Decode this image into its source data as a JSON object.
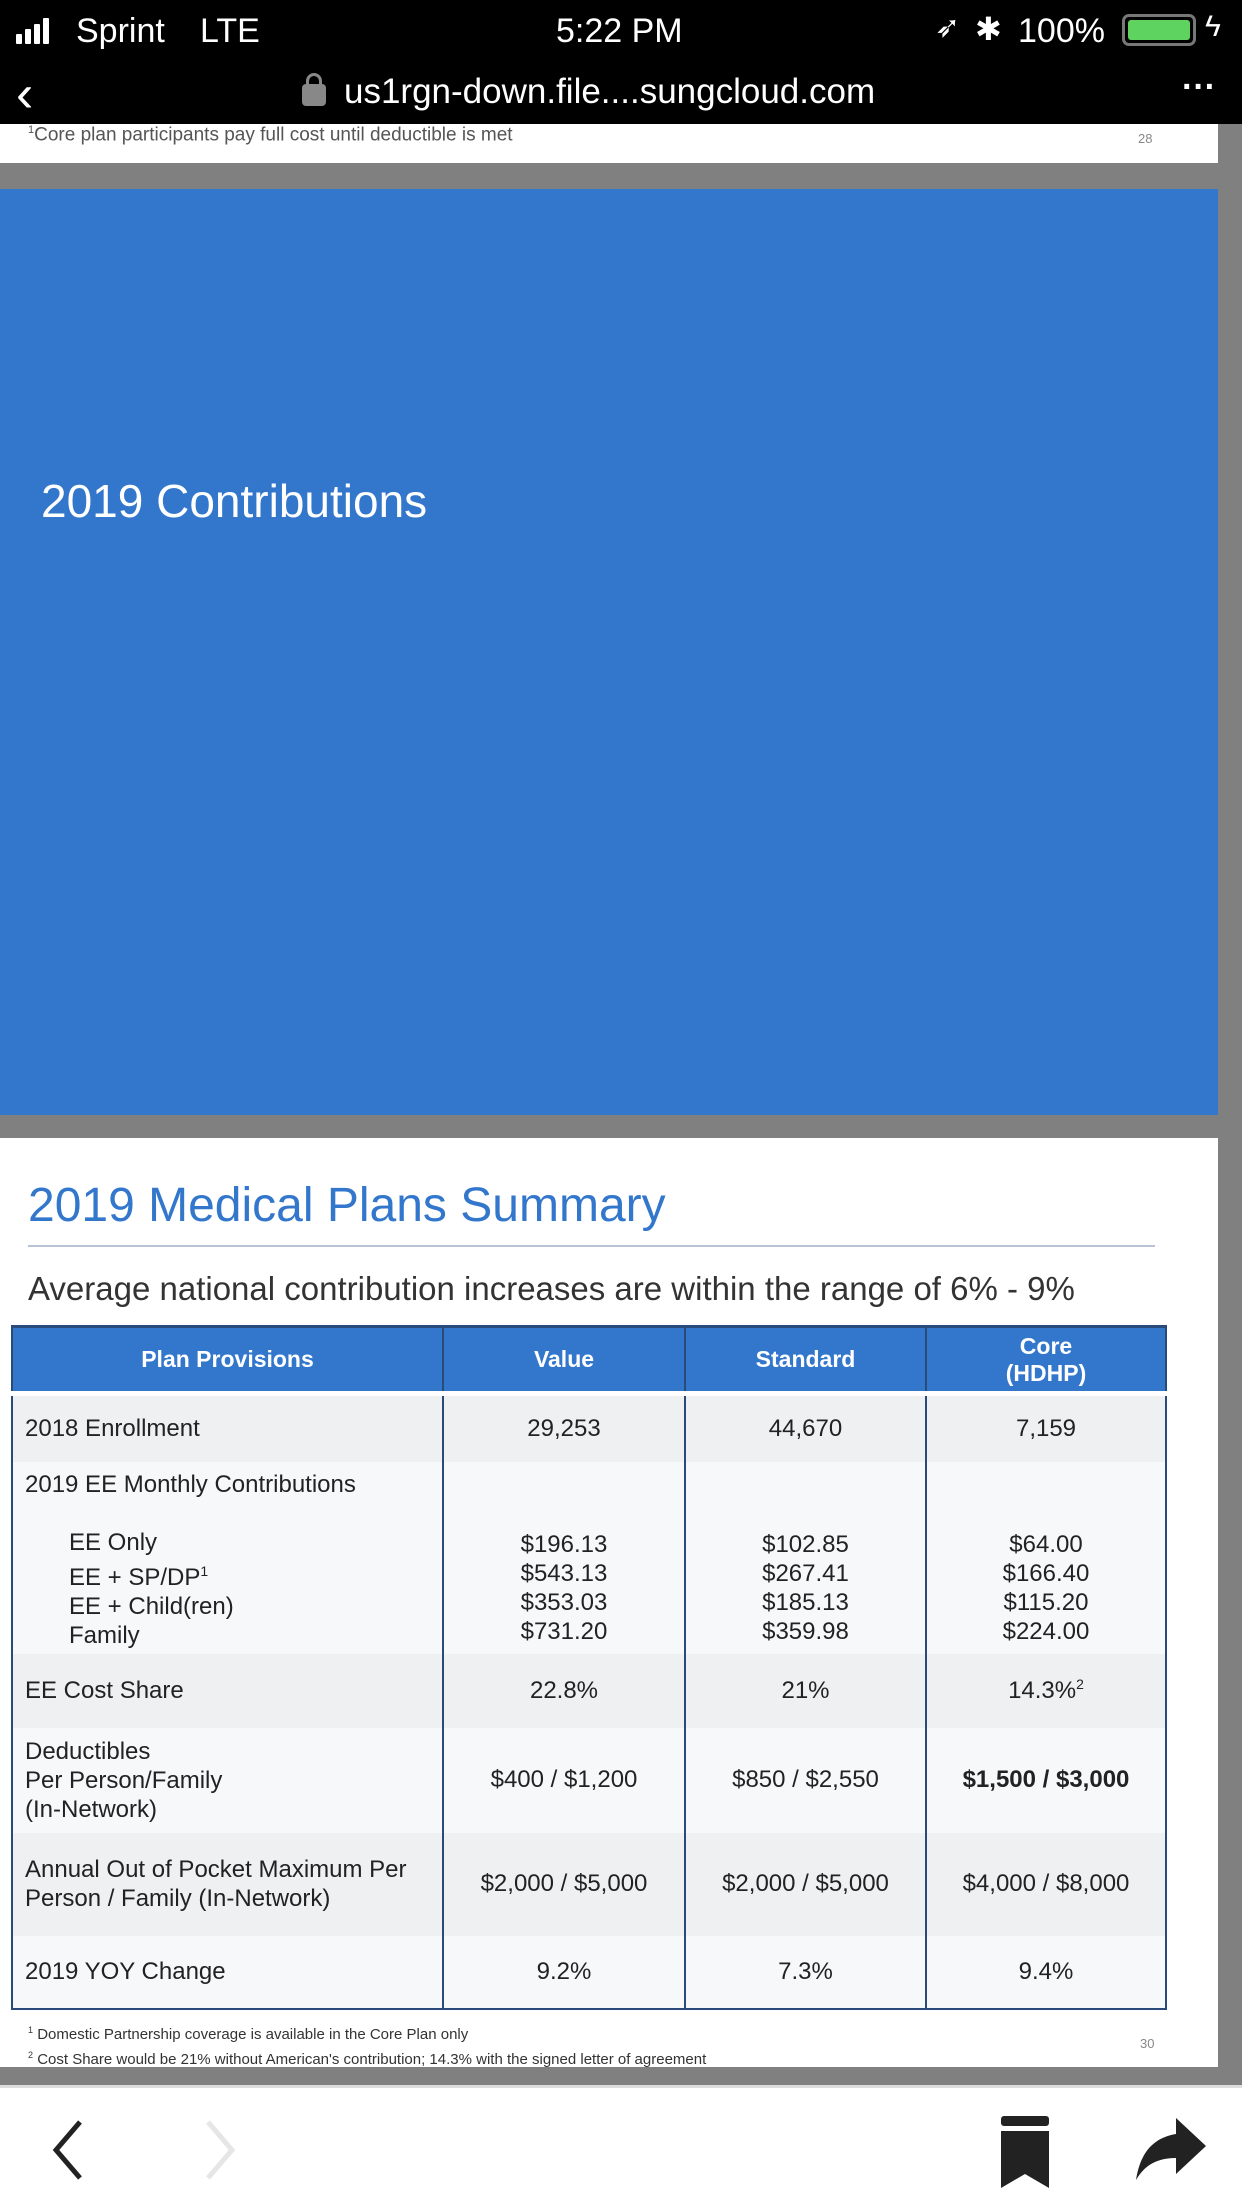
{
  "status": {
    "carrier": "Sprint",
    "network": "LTE",
    "time": "5:22 PM",
    "battery": "100%"
  },
  "browser": {
    "url": "us1rgn-down.file....sungcloud.com"
  },
  "prev_page": {
    "footnote": "Core plan participants pay full cost until deductible is met",
    "footnote_mark": "1",
    "page_number": "28"
  },
  "slide_title": {
    "title": "2019 Contributions"
  },
  "summary": {
    "title": "2019 Medical Plans Summary",
    "subtitle": "Average national contribution increases are within the range of 6% - 9%",
    "headers": [
      "Plan Provisions",
      "Value",
      "Standard",
      "Core",
      "(HDHP)"
    ],
    "enrollment": {
      "label": "2018 Enrollment",
      "values": [
        "29,253",
        "44,670",
        "7,159"
      ]
    },
    "contributions": {
      "label": "2019 EE Monthly Contributions",
      "tiers": [
        "EE Only",
        "EE + SP/DP",
        "EE + Child(ren)",
        "Family"
      ],
      "tier_sup": "1",
      "value": [
        "$196.13",
        "$543.13",
        "$353.03",
        "$731.20"
      ],
      "standard": [
        "$102.85",
        "$267.41",
        "$185.13",
        "$359.98"
      ],
      "core": [
        "$64.00",
        "$166.40",
        "$115.20",
        "$224.00"
      ]
    },
    "cost_share": {
      "label": "EE Cost Share",
      "values": [
        "22.8%",
        "21%",
        "14.3%"
      ],
      "sup": "2"
    },
    "deductibles": {
      "label": [
        "Deductibles",
        "Per Person/Family",
        "(In-Network)"
      ],
      "values": [
        "$400 / $1,200",
        "$850 / $2,550",
        "$1,500 / $3,000"
      ]
    },
    "oop": {
      "label": [
        "Annual Out of Pocket Maximum Per",
        "Person / Family (In-Network)"
      ],
      "values": [
        "$2,000 / $5,000",
        "$2,000 / $5,000",
        "$4,000 / $8,000"
      ]
    },
    "yoy": {
      "label": "2019 YOY Change",
      "values": [
        "9.2%",
        "7.3%",
        "9.4%"
      ]
    },
    "footnotes": [
      {
        "mark": "1",
        "text": "Domestic Partnership coverage is available in the Core Plan only"
      },
      {
        "mark": "2",
        "text": "Cost Share would be 21% without American's contribution; 14.3% with the signed letter of agreement"
      }
    ],
    "page_number": "30"
  }
}
